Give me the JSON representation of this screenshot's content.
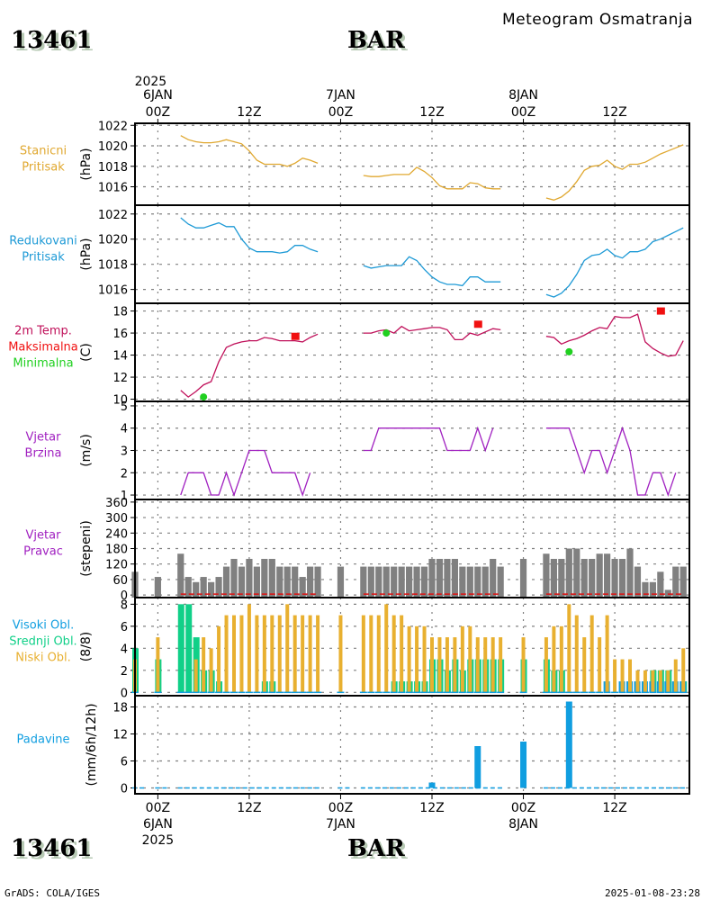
{
  "header": {
    "station_id": "13461",
    "station_name": "BAR",
    "title": "Meteogram Osmatranja"
  },
  "footer": {
    "left": "GrADS: COLA/IGES",
    "right": "2025-01-08-23:28",
    "station_id": "13461",
    "station_name": "BAR"
  },
  "time_axis": {
    "top_year": "2025",
    "top_labels": [
      {
        "hour": 0,
        "line1": "6JAN",
        "line2": "00Z"
      },
      {
        "hour": 12,
        "line1": "",
        "line2": "12Z"
      },
      {
        "hour": 24,
        "line1": "7JAN",
        "line2": "00Z"
      },
      {
        "hour": 36,
        "line1": "",
        "line2": "12Z"
      },
      {
        "hour": 48,
        "line1": "8JAN",
        "line2": "00Z"
      },
      {
        "hour": 60,
        "line1": "",
        "line2": "12Z"
      }
    ],
    "bottom_labels": [
      {
        "hour": 0,
        "line1": "00Z",
        "line2": "6JAN",
        "line3": "2025"
      },
      {
        "hour": 12,
        "line1": "12Z",
        "line2": "",
        "line3": ""
      },
      {
        "hour": 24,
        "line1": "00Z",
        "line2": "7JAN",
        "line3": ""
      },
      {
        "hour": 36,
        "line1": "12Z",
        "line2": "",
        "line3": ""
      },
      {
        "hour": 48,
        "line1": "00Z",
        "line2": "8JAN",
        "line3": ""
      },
      {
        "hour": 60,
        "line1": "12Z",
        "line2": "",
        "line3": ""
      }
    ],
    "range_hours": [
      -3,
      70
    ],
    "unit": "hours since 2025-01-06 00Z"
  },
  "colors": {
    "station_pressure": "#e0a830",
    "reduced_pressure": "#1e9ad6",
    "temp": "#c0105a",
    "tmax": "#f01010",
    "tmin": "#20d020",
    "wind_speed": "#a020c0",
    "wind_dir": "#808080",
    "calm": "#e01010",
    "cloud_high": "#109ee0",
    "cloud_mid": "#10d088",
    "cloud_low": "#e8b030",
    "precip": "#109ee0",
    "grid": "#808080"
  },
  "chart_data": [
    {
      "type": "line",
      "id": "station_pressure",
      "title_lines": [
        "Stanicni",
        "Pritisak"
      ],
      "ylabel": "(hPa)",
      "ylim": [
        1014.2,
        1022.2
      ],
      "yticks": [
        1016,
        1018,
        1020,
        1022
      ],
      "grid": true,
      "segments": [
        {
          "x": [
            3,
            4,
            5,
            6,
            7,
            8,
            9,
            10,
            11,
            12,
            13,
            14,
            15,
            16,
            17,
            18,
            19,
            20,
            21
          ],
          "y": [
            1021.0,
            1020.6,
            1020.4,
            1020.3,
            1020.3,
            1020.4,
            1020.6,
            1020.4,
            1020.2,
            1019.5,
            1018.6,
            1018.2,
            1018.2,
            1018.2,
            1018.0,
            1018.3,
            1018.8,
            1018.6,
            1018.3
          ]
        },
        {
          "x": [
            27,
            28,
            29,
            30,
            31,
            32,
            33,
            34,
            35,
            36,
            37,
            38,
            39,
            40,
            41,
            42,
            43,
            44,
            45
          ],
          "y": [
            1017.1,
            1017.0,
            1017.0,
            1017.1,
            1017.2,
            1017.2,
            1017.2,
            1017.9,
            1017.5,
            1016.9,
            1016.1,
            1015.8,
            1015.8,
            1015.8,
            1016.4,
            1016.3,
            1015.9,
            1015.8,
            1015.8
          ]
        },
        {
          "x": [
            51,
            52,
            53,
            54,
            55,
            56,
            57,
            58,
            59,
            60,
            61,
            62,
            63,
            64,
            65,
            66,
            67,
            68,
            69
          ],
          "y": [
            1014.9,
            1014.7,
            1015.0,
            1015.6,
            1016.5,
            1017.6,
            1018.0,
            1018.1,
            1018.6,
            1018.0,
            1017.7,
            1018.2,
            1018.2,
            1018.4,
            1018.8,
            1019.2,
            1019.5,
            1019.8,
            1020.1
          ]
        }
      ]
    },
    {
      "type": "line",
      "id": "reduced_pressure",
      "title_lines": [
        "Redukovani",
        "Pritisak"
      ],
      "ylabel": "(hPa)",
      "ylim": [
        1014.9,
        1022.7
      ],
      "yticks": [
        1016,
        1018,
        1020,
        1022
      ],
      "grid": true,
      "segments": [
        {
          "x": [
            3,
            4,
            5,
            6,
            7,
            8,
            9,
            10,
            11,
            12,
            13,
            14,
            15,
            16,
            17,
            18,
            19,
            20,
            21
          ],
          "y": [
            1021.7,
            1021.2,
            1020.9,
            1020.9,
            1021.1,
            1021.3,
            1021.0,
            1021.0,
            1020.0,
            1019.3,
            1019.0,
            1019.0,
            1019.0,
            1018.9,
            1019.0,
            1019.5,
            1019.5,
            1019.2,
            1019.0
          ]
        },
        {
          "x": [
            27,
            28,
            29,
            30,
            31,
            32,
            33,
            34,
            35,
            36,
            37,
            38,
            39,
            40,
            41,
            42,
            43,
            44,
            45
          ],
          "y": [
            1017.9,
            1017.7,
            1017.8,
            1017.9,
            1017.9,
            1017.9,
            1018.6,
            1018.3,
            1017.6,
            1017.0,
            1016.6,
            1016.4,
            1016.4,
            1016.3,
            1017.0,
            1017.0,
            1016.6,
            1016.6,
            1016.6
          ]
        },
        {
          "x": [
            51,
            52,
            53,
            54,
            55,
            56,
            57,
            58,
            59,
            60,
            61,
            62,
            63,
            64,
            65,
            66,
            67,
            68,
            69
          ],
          "y": [
            1015.6,
            1015.4,
            1015.7,
            1016.3,
            1017.2,
            1018.3,
            1018.7,
            1018.8,
            1019.2,
            1018.7,
            1018.5,
            1019.0,
            1019.0,
            1019.2,
            1019.8,
            1020.0,
            1020.3,
            1020.6,
            1020.9
          ]
        }
      ]
    },
    {
      "type": "line",
      "id": "temperature",
      "title_lines": [
        "2m Temp.",
        "Maksimalna",
        "Minimalna"
      ],
      "ylabel": "(C)",
      "ylim": [
        9.8,
        18.7
      ],
      "yticks": [
        10,
        12,
        14,
        16,
        18
      ],
      "grid": true,
      "segments": [
        {
          "x": [
            3,
            4,
            5,
            6,
            7,
            8,
            9,
            10,
            11,
            12,
            13,
            14,
            15,
            16,
            17,
            18,
            19,
            20,
            21
          ],
          "y": [
            10.8,
            10.2,
            10.7,
            11.3,
            11.6,
            13.4,
            14.7,
            15.0,
            15.2,
            15.3,
            15.3,
            15.6,
            15.5,
            15.3,
            15.3,
            15.3,
            15.2,
            15.6,
            15.9
          ]
        },
        {
          "x": [
            27,
            28,
            29,
            30,
            31,
            32,
            33,
            34,
            35,
            36,
            37,
            38,
            39,
            40,
            41,
            42,
            43,
            44,
            45
          ],
          "y": [
            16.0,
            16.0,
            16.2,
            16.3,
            16.0,
            16.6,
            16.2,
            16.3,
            16.4,
            16.5,
            16.5,
            16.3,
            15.4,
            15.4,
            16.0,
            15.8,
            16.1,
            16.4,
            16.3
          ]
        },
        {
          "x": [
            51,
            52,
            53,
            54,
            55,
            56,
            57,
            58,
            59,
            60,
            61,
            62,
            63,
            64,
            65,
            66,
            67,
            68,
            69
          ],
          "y": [
            15.7,
            15.6,
            15.0,
            15.3,
            15.5,
            15.8,
            16.2,
            16.5,
            16.4,
            17.5,
            17.4,
            17.4,
            17.7,
            15.2,
            14.6,
            14.2,
            13.9,
            14.0,
            15.3
          ]
        }
      ],
      "tmax_points": [
        {
          "x": 18,
          "y": 15.7
        },
        {
          "x": 42,
          "y": 16.8
        },
        {
          "x": 66,
          "y": 18.0
        }
      ],
      "tmin_points": [
        {
          "x": 6,
          "y": 10.2
        },
        {
          "x": 30,
          "y": 16.0
        },
        {
          "x": 54,
          "y": 14.3
        }
      ]
    },
    {
      "type": "line",
      "id": "wind_speed",
      "title_lines": [
        "Vjetar",
        "Brzina"
      ],
      "ylabel": "(m/s)",
      "ylim": [
        0.8,
        5.2
      ],
      "yticks": [
        1,
        2,
        3,
        4,
        5
      ],
      "grid": true,
      "segments": [
        {
          "x": [
            3,
            4,
            5,
            6,
            7,
            8,
            9,
            10,
            11,
            12,
            13,
            14,
            15,
            16,
            17,
            18,
            19,
            20,
            21
          ],
          "y": [
            1,
            2,
            2,
            2,
            1,
            1,
            2,
            1,
            2,
            3,
            3,
            3,
            2,
            2,
            2,
            2,
            1,
            2,
            null
          ]
        },
        {
          "x": [
            27,
            28,
            29,
            30,
            31,
            32,
            33,
            34,
            35,
            36,
            37,
            38,
            39,
            40,
            41,
            42,
            43,
            44,
            45
          ],
          "y": [
            3,
            3,
            4,
            4,
            4,
            4,
            4,
            4,
            4,
            4,
            4,
            3,
            3,
            3,
            3,
            4,
            3,
            4,
            null
          ]
        },
        {
          "x": [
            51,
            52,
            53,
            54,
            55,
            56,
            57,
            58,
            59,
            60,
            61,
            62,
            63,
            64,
            65,
            66,
            67,
            68,
            69
          ],
          "y": [
            4,
            4,
            4,
            4,
            3,
            2,
            3,
            3,
            2,
            3,
            4,
            3,
            1,
            1,
            2,
            2,
            1,
            2,
            null
          ]
        }
      ]
    },
    {
      "type": "bar",
      "id": "wind_direction",
      "title_lines": [
        "Vjetar",
        "Pravac"
      ],
      "ylabel": "(stepeni)",
      "ylim": [
        -10,
        370
      ],
      "yticks": [
        0,
        60,
        120,
        180,
        240,
        300,
        360
      ],
      "grid": true,
      "x": [
        -3,
        0,
        3,
        4,
        5,
        6,
        7,
        8,
        9,
        10,
        11,
        12,
        13,
        14,
        15,
        16,
        17,
        18,
        19,
        20,
        21,
        24,
        27,
        28,
        29,
        30,
        31,
        32,
        33,
        34,
        35,
        36,
        37,
        38,
        39,
        40,
        41,
        42,
        43,
        44,
        45,
        48,
        51,
        52,
        53,
        54,
        55,
        56,
        57,
        58,
        59,
        60,
        61,
        62,
        63,
        64,
        65,
        66,
        67,
        68,
        69
      ],
      "values": [
        90,
        70,
        160,
        70,
        50,
        70,
        50,
        70,
        110,
        140,
        110,
        140,
        110,
        140,
        140,
        110,
        110,
        110,
        70,
        110,
        110,
        110,
        110,
        110,
        110,
        110,
        110,
        110,
        110,
        110,
        110,
        140,
        140,
        140,
        140,
        110,
        110,
        110,
        110,
        140,
        110,
        140,
        160,
        140,
        140,
        180,
        180,
        140,
        140,
        160,
        160,
        140,
        140,
        180,
        110,
        50,
        50,
        90,
        20,
        110,
        110
      ],
      "calm_dash_ranges": [
        [
          3,
          21
        ],
        [
          27,
          45
        ],
        [
          51,
          69
        ]
      ]
    },
    {
      "type": "bar",
      "id": "cloud_cover",
      "title_lines": [
        "Visoki Obl.",
        "Srednji Obl.",
        "Niski Obl."
      ],
      "ylabel": "(8/8)",
      "ylim": [
        -0.3,
        8.6
      ],
      "yticks": [
        0,
        2,
        4,
        6,
        8
      ],
      "grid": true,
      "x": [
        -3,
        0,
        3,
        4,
        5,
        6,
        7,
        8,
        9,
        10,
        11,
        12,
        13,
        14,
        15,
        16,
        17,
        18,
        19,
        20,
        21,
        24,
        27,
        28,
        29,
        30,
        31,
        32,
        33,
        34,
        35,
        36,
        37,
        38,
        39,
        40,
        41,
        42,
        43,
        44,
        45,
        48,
        51,
        52,
        53,
        54,
        55,
        56,
        57,
        58,
        59,
        60,
        61,
        62,
        63,
        64,
        65,
        66,
        67,
        68,
        69
      ],
      "series": [
        {
          "name": "Visoki Obl.",
          "values": [
            0,
            0,
            0,
            0,
            0,
            0,
            0,
            0,
            0,
            0,
            0,
            0,
            0,
            0,
            0,
            0,
            0,
            0,
            0,
            0,
            0,
            0,
            0,
            0,
            0,
            0,
            0,
            0,
            0,
            0,
            0,
            0,
            0,
            0,
            0,
            0,
            0,
            0,
            0,
            0,
            0,
            0,
            0,
            0,
            0,
            0,
            0,
            0,
            0,
            0,
            1,
            0,
            1,
            1,
            1,
            1,
            1,
            1,
            1,
            1,
            1
          ]
        },
        {
          "name": "Srednji Obl.",
          "values": [
            4,
            3,
            8,
            8,
            5,
            2,
            2,
            1,
            0,
            0,
            0,
            0,
            0,
            1,
            1,
            0,
            0,
            0,
            0,
            0,
            0,
            0,
            0,
            0,
            0,
            0,
            1,
            1,
            1,
            1,
            1,
            3,
            3,
            2,
            3,
            2,
            3,
            3,
            3,
            3,
            3,
            3,
            3,
            2,
            2,
            0,
            0,
            0,
            0,
            0,
            0,
            0,
            0,
            0,
            0,
            0,
            2,
            2,
            2,
            0,
            1
          ]
        },
        {
          "name": "Niski Obl.",
          "values": [
            3,
            5,
            0,
            0,
            3,
            5,
            4,
            6,
            7,
            7,
            7,
            8,
            7,
            7,
            7,
            7,
            8,
            7,
            7,
            7,
            7,
            7,
            7,
            7,
            7,
            8,
            7,
            7,
            6,
            6,
            6,
            5,
            5,
            5,
            5,
            6,
            6,
            5,
            5,
            5,
            5,
            5,
            5,
            6,
            6,
            8,
            7,
            5,
            7,
            5,
            7,
            3,
            3,
            3,
            2,
            2,
            2,
            2,
            2,
            3,
            4
          ]
        }
      ]
    },
    {
      "type": "bar",
      "id": "precipitation",
      "title_lines": [
        "Padavine"
      ],
      "ylabel": "(mm/6h/12h)",
      "ylim": [
        -1.3,
        20.5
      ],
      "yticks": [
        0,
        6,
        12,
        18
      ],
      "grid": true,
      "x": [
        36,
        42,
        48,
        54
      ],
      "values": [
        1.2,
        9.3,
        10.3,
        19.2
      ],
      "zero_dash_ranges": [
        [
          -3,
          -2
        ],
        [
          0,
          1
        ],
        [
          3,
          21
        ],
        [
          24,
          25
        ],
        [
          27,
          45
        ],
        [
          51,
          69
        ]
      ]
    }
  ]
}
